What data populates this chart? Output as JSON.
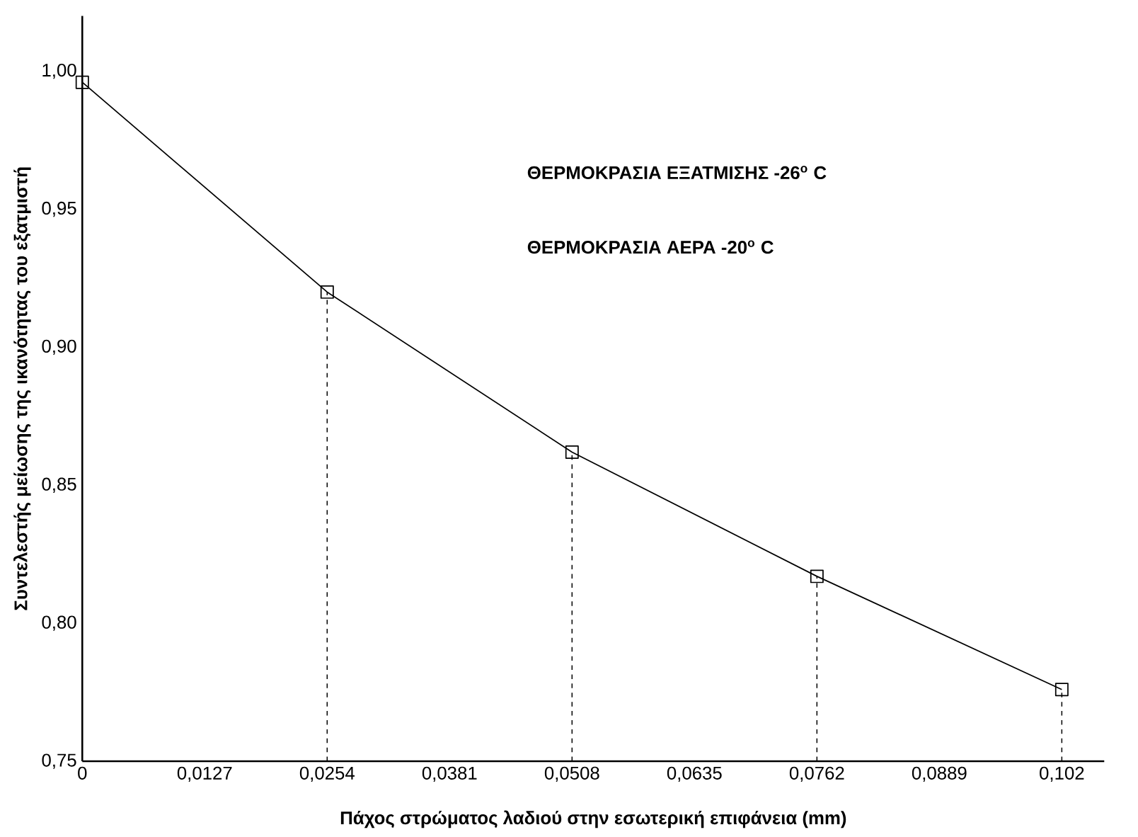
{
  "chart_data": {
    "type": "line",
    "xlabel": "Πάχος στρώματος λαδιού στην εσωτερική επιφάνεια (mm)",
    "ylabel": "Συντελεστής μείωσης της ικανότητας του εξατμιστή",
    "x": [
      0,
      0.0254,
      0.0508,
      0.0762,
      0.1016
    ],
    "series": [
      {
        "color": "#000000",
        "values": [
          0.996,
          0.92,
          0.862,
          0.817,
          0.776
        ]
      }
    ],
    "xlim": [
      0,
      0.106
    ],
    "ylim": [
      0.75,
      1.02
    ],
    "xticks": [
      {
        "value": 0,
        "label": "0"
      },
      {
        "value": 0.0127,
        "label": "0,0127"
      },
      {
        "value": 0.0254,
        "label": "0,0254"
      },
      {
        "value": 0.0381,
        "label": "0,0381"
      },
      {
        "value": 0.0508,
        "label": "0,0508"
      },
      {
        "value": 0.0635,
        "label": "0,0635"
      },
      {
        "value": 0.0762,
        "label": "0,0762"
      },
      {
        "value": 0.0889,
        "label": "0,0889"
      },
      {
        "value": 0.1016,
        "label": "0,102"
      }
    ],
    "yticks": [
      {
        "value": 0.75,
        "label": "0,75"
      },
      {
        "value": 0.8,
        "label": "0,80"
      },
      {
        "value": 0.85,
        "label": "0,85"
      },
      {
        "value": 0.9,
        "label": "0,90"
      },
      {
        "value": 0.95,
        "label": "0,95"
      },
      {
        "value": 1.0,
        "label": "1,00"
      }
    ],
    "ref_lines": [
      {
        "axis": "x",
        "value": 0.0254,
        "line_style": "dashed"
      },
      {
        "axis": "x",
        "value": 0.0508,
        "line_style": "dashed"
      },
      {
        "axis": "x",
        "value": 0.0762,
        "line_style": "dashed"
      },
      {
        "axis": "x",
        "value": 0.1016,
        "line_style": "dashed"
      }
    ],
    "annotations": [
      "ΘΕΡΜΟΚΡΑΣΙΑ ΕΞΑΤΜΙΣΗΣ -26$^{o}$ C",
      "ΘΕΡΜΟΚΡΑΣΙΑ ΑΕΡΑ -20$^{o}$ C"
    ],
    "marker": "square",
    "line_style": "solid",
    "grid": false
  }
}
